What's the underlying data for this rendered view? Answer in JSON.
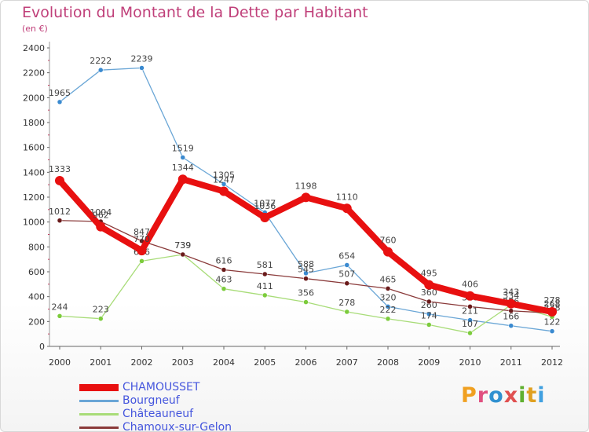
{
  "title": "Evolution du Montant de la Dette par Habitant",
  "subtitle": "(en €)",
  "logo": {
    "text": "Proxiti",
    "letter_colors": [
      "#f0a020",
      "#e05080",
      "#3090d0",
      "#e05050",
      "#60b030",
      "#e0a020",
      "#40a0e0"
    ]
  },
  "chart_data": {
    "type": "line",
    "x": [
      "2000",
      "2001",
      "2002",
      "2003",
      "2004",
      "2005",
      "2006",
      "2007",
      "2008",
      "2009",
      "2010",
      "2011",
      "2012"
    ],
    "ylim": [
      0,
      2400
    ],
    "yticks": [
      0,
      200,
      400,
      600,
      800,
      1000,
      1200,
      1400,
      1600,
      1800,
      2000,
      2200,
      2400
    ],
    "grid": false,
    "legend_position": "bottom",
    "series": [
      {
        "name": "Bourgneuf",
        "color": "#6aa6d6",
        "marker": "#3a8ad0",
        "values": [
          1965,
          2222,
          2239,
          1519,
          1305,
          1077,
          588,
          654,
          320,
          260,
          211,
          166,
          122
        ]
      },
      {
        "name": "Châteauneuf",
        "color": "#a8dc78",
        "marker": "#7ccc3c",
        "values": [
          244,
          223,
          686,
          739,
          463,
          411,
          356,
          278,
          222,
          174,
          107,
          334,
          238
        ]
      },
      {
        "name": "Chamoux-sur-Gelon",
        "color": "#8a3a3a",
        "marker": "#6a1a1a",
        "values": [
          1012,
          1004,
          847,
          739,
          616,
          581,
          545,
          507,
          465,
          360,
          320,
          286,
          268
        ]
      },
      {
        "name": "CHAMOUSSET",
        "color": "#e81010",
        "marker": "#e81010",
        "values": [
          1333,
          962,
          770,
          1344,
          1247,
          1036,
          1198,
          1110,
          760,
          495,
          406,
          343,
          278
        ]
      }
    ],
    "legend_order": [
      "CHAMOUSSET",
      "Bourgneuf",
      "Châteauneuf",
      "Chamoux-sur-Gelon"
    ]
  }
}
